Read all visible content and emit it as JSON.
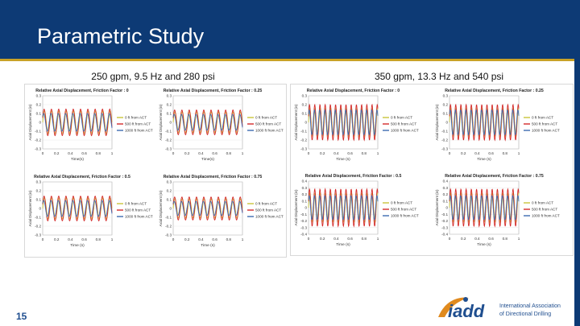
{
  "slide": {
    "title": "Parametric Study",
    "number": "15"
  },
  "captions": {
    "left": "250 gpm, 9.5 Hz and 280 psi",
    "right": "350 gpm, 13.3 Hz and 540 psi"
  },
  "logo": {
    "word": "iadd",
    "line1": "International Association",
    "line2": "of Directional Drilling"
  },
  "colors": {
    "series_0ft": "#c9c53a",
    "series_500ft": "#d42a2a",
    "series_1000ft": "#3f6db0",
    "title_bar": "#0d3a75"
  },
  "chart_data": [
    {
      "type": "line",
      "group": "left",
      "title": "Relative Axial Displacement, Friction Factor : 0",
      "xlabel": "Time(s)",
      "ylabel": "Axial Displacement (in)",
      "xticks": [
        "0",
        "0.2",
        "0.4",
        "0.6",
        "0.8",
        "1"
      ],
      "yticks": [
        "0.3",
        "0.2",
        "0.1",
        "0",
        "-0.1",
        "-0.2",
        "-0.3"
      ],
      "xlim": [
        0,
        1
      ],
      "ylim": [
        -0.3,
        0.3
      ],
      "frequency_hz": 9.5,
      "legend_position": "right",
      "series": [
        {
          "name": "0 ft from ACT",
          "amplitude": 0.13,
          "color": "#c9c53a"
        },
        {
          "name": "500 ft from ACT",
          "amplitude": 0.15,
          "color": "#d42a2a"
        },
        {
          "name": "1000 ft from ACT",
          "amplitude": 0.1,
          "color": "#3f6db0"
        }
      ]
    },
    {
      "type": "line",
      "group": "left",
      "title": "Relative Axial Displacement, Friction Factor : 0.25",
      "xlabel": "Time(s)",
      "ylabel": "Axial Displacement (in)",
      "xticks": [
        "0",
        "0.2",
        "0.4",
        "0.6",
        "0.8",
        "1"
      ],
      "yticks": [
        "0.3",
        "0.2",
        "0.1",
        "0",
        "-0.1",
        "-0.2",
        "-0.3"
      ],
      "xlim": [
        0,
        1
      ],
      "ylim": [
        -0.3,
        0.3
      ],
      "frequency_hz": 9.5,
      "legend_position": "right",
      "series": [
        {
          "name": "0 ft from ACT",
          "amplitude": 0.12,
          "color": "#c9c53a"
        },
        {
          "name": "500 ft from ACT",
          "amplitude": 0.14,
          "color": "#d42a2a"
        },
        {
          "name": "1000 ft from ACT",
          "amplitude": 0.09,
          "color": "#3f6db0"
        }
      ]
    },
    {
      "type": "line",
      "group": "left",
      "title": "Relative Axial Displacement, Friction Factor : 0.5",
      "xlabel": "Time (s)",
      "ylabel": "Axial Displacement (in)",
      "xticks": [
        "0",
        "0.2",
        "0.4",
        "0.6",
        "0.8",
        "1"
      ],
      "yticks": [
        "0.3",
        "0.2",
        "0.1",
        "0",
        "-0.1",
        "-0.2",
        "-0.3"
      ],
      "xlim": [
        0,
        1
      ],
      "ylim": [
        -0.3,
        0.3
      ],
      "frequency_hz": 9.5,
      "legend_position": "right",
      "series": [
        {
          "name": "0 ft from ACT",
          "amplitude": 0.12,
          "color": "#c9c53a"
        },
        {
          "name": "500 ft from ACT",
          "amplitude": 0.14,
          "color": "#d42a2a"
        },
        {
          "name": "1000 ft from ACT",
          "amplitude": 0.09,
          "color": "#3f6db0"
        }
      ]
    },
    {
      "type": "line",
      "group": "left",
      "title": "Relative Axial Displacement, Friction Factor : 0.75",
      "xlabel": "Time (s)",
      "ylabel": "Axial Displacement (in)",
      "xticks": [
        "0",
        "0.2",
        "0.4",
        "0.6",
        "0.8",
        "1"
      ],
      "yticks": [
        "0.3",
        "0.2",
        "0.1",
        "0",
        "-0.1",
        "-0.2",
        "-0.3"
      ],
      "xlim": [
        0,
        1
      ],
      "ylim": [
        -0.3,
        0.3
      ],
      "frequency_hz": 9.5,
      "legend_position": "right",
      "series": [
        {
          "name": "0 ft from ACT",
          "amplitude": 0.11,
          "color": "#c9c53a"
        },
        {
          "name": "500 ft from ACT",
          "amplitude": 0.13,
          "color": "#d42a2a"
        },
        {
          "name": "1000 ft from ACT",
          "amplitude": 0.08,
          "color": "#3f6db0"
        }
      ]
    },
    {
      "type": "line",
      "group": "right",
      "title": "Relative Axial Displacement, Friction Factor : 0",
      "xlabel": "Time (s)",
      "ylabel": "Axial Displacement (in)",
      "xticks": [
        "0",
        "0.2",
        "0.4",
        "0.6",
        "0.8",
        "1"
      ],
      "yticks": [
        "0.3",
        "0.2",
        "0.1",
        "0",
        "-0.1",
        "-0.2",
        "-0.3"
      ],
      "xlim": [
        0,
        1
      ],
      "ylim": [
        -0.3,
        0.3
      ],
      "frequency_hz": 13.3,
      "legend_position": "right",
      "series": [
        {
          "name": "0 ft from ACT",
          "amplitude": 0.16,
          "color": "#c9c53a"
        },
        {
          "name": "500 ft from ACT",
          "amplitude": 0.2,
          "color": "#d42a2a"
        },
        {
          "name": "1000 ft from ACT",
          "amplitude": 0.14,
          "color": "#3f6db0"
        }
      ]
    },
    {
      "type": "line",
      "group": "right",
      "title": "Relative Axial Displacement, Friction Factor : 0.25",
      "xlabel": "Time (s)",
      "ylabel": "Axial Displacement (in)",
      "xticks": [
        "0",
        "0.2",
        "0.4",
        "0.6",
        "0.8",
        "1"
      ],
      "yticks": [
        "0.3",
        "0.2",
        "0.1",
        "0",
        "-0.1",
        "-0.2",
        "-0.3"
      ],
      "xlim": [
        0,
        1
      ],
      "ylim": [
        -0.3,
        0.3
      ],
      "frequency_hz": 13.3,
      "legend_position": "right",
      "series": [
        {
          "name": "0 ft from ACT",
          "amplitude": 0.16,
          "color": "#c9c53a"
        },
        {
          "name": "500 ft from ACT",
          "amplitude": 0.2,
          "color": "#d42a2a"
        },
        {
          "name": "1000 ft from ACT",
          "amplitude": 0.14,
          "color": "#3f6db0"
        }
      ]
    },
    {
      "type": "line",
      "group": "right",
      "title": "Relative Axial Displacement, Friction Factor : 0.5",
      "xlabel": "Time (s)",
      "ylabel": "Axial Displacement (in)",
      "xticks": [
        "0",
        "0.2",
        "0.4",
        "0.6",
        "0.8",
        "1"
      ],
      "yticks": [
        "0.4",
        "0.3",
        "0.2",
        "0.1",
        "0",
        "-0.1",
        "-0.2",
        "-0.3",
        "-0.4"
      ],
      "xlim": [
        0,
        1
      ],
      "ylim": [
        -0.4,
        0.4
      ],
      "frequency_hz": 13.3,
      "legend_position": "right",
      "series": [
        {
          "name": "0 ft from ACT",
          "amplitude": 0.22,
          "color": "#c9c53a"
        },
        {
          "name": "500 ft from ACT",
          "amplitude": 0.28,
          "color": "#d42a2a"
        },
        {
          "name": "1000 ft from ACT",
          "amplitude": 0.18,
          "color": "#3f6db0"
        }
      ]
    },
    {
      "type": "line",
      "group": "right",
      "title": "Relative Axial Displacement, Friction Factor : 0.75",
      "xlabel": "Time (s)",
      "ylabel": "Axial Displacement (in)",
      "xticks": [
        "0",
        "0.2",
        "0.4",
        "0.6",
        "0.8",
        "1"
      ],
      "yticks": [
        "0.4",
        "0.3",
        "0.2",
        "0.1",
        "0",
        "-0.1",
        "-0.2",
        "-0.3",
        "-0.4"
      ],
      "xlim": [
        0,
        1
      ],
      "ylim": [
        -0.4,
        0.4
      ],
      "frequency_hz": 13.3,
      "legend_position": "right",
      "series": [
        {
          "name": "0 ft from ACT",
          "amplitude": 0.22,
          "color": "#c9c53a"
        },
        {
          "name": "500 ft from ACT",
          "amplitude": 0.28,
          "color": "#d42a2a"
        },
        {
          "name": "1000 ft from ACT",
          "amplitude": 0.18,
          "color": "#3f6db0"
        }
      ]
    }
  ]
}
